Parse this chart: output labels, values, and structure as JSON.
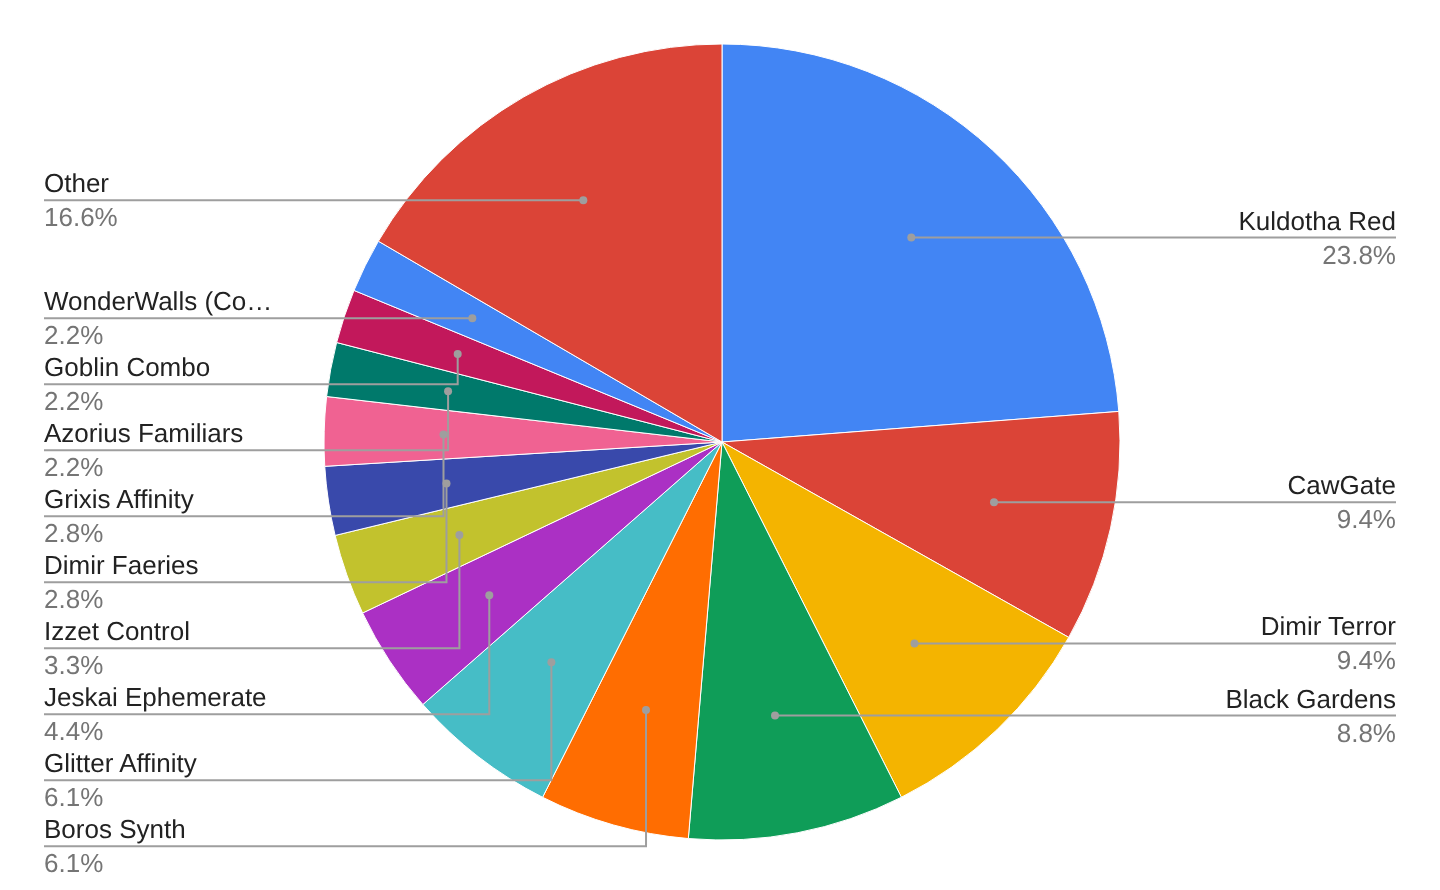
{
  "chart_data": {
    "type": "pie",
    "categories": [
      "Kuldotha Red",
      "CawGate",
      "Dimir Terror",
      "Black Gardens",
      "Boros Synth",
      "Glitter Affinity",
      "Jeskai Ephemerate",
      "Izzet Control",
      "Dimir Faeries",
      "Grixis Affinity",
      "Azorius Familiars",
      "Goblin Combo",
      "WonderWalls (Co…",
      "Other"
    ],
    "values": [
      23.8,
      9.4,
      9.4,
      8.8,
      6.1,
      6.1,
      4.4,
      3.3,
      2.8,
      2.8,
      2.2,
      2.2,
      2.2,
      16.6
    ],
    "value_labels": [
      "23.8%",
      "9.4%",
      "9.4%",
      "8.8%",
      "6.1%",
      "6.1%",
      "4.4%",
      "3.3%",
      "2.8%",
      "2.8%",
      "2.2%",
      "2.2%",
      "2.2%",
      "16.6%"
    ],
    "colors": [
      "#4285f4",
      "#db4437",
      "#f4b400",
      "#0f9d58",
      "#ff6d01",
      "#46bdc6",
      "#ab30c4",
      "#c2c22d",
      "#3949ab",
      "#f06292",
      "#00796b",
      "#c2185b",
      "#4285f4",
      "#db4437"
    ]
  }
}
